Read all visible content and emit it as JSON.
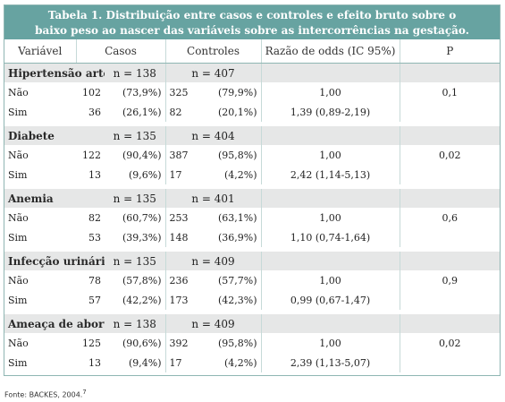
{
  "title_line1": "Tabela 1. Distribuição entre casos e controles e efeito bruto sobre o",
  "title_line2": "baixo peso ao nascer das variáveis sobre as intercorrências na gestação.",
  "headers": [
    "Variável",
    "Casos",
    "Controles",
    "Razão de odds (IC 95%)",
    "P"
  ],
  "groups": [
    {
      "name": "Hipertensão arterial",
      "n_casos": "n = 138",
      "n_controles": "n = 407",
      "rows": [
        {
          "label": "Não",
          "c": "102",
          "cp": "(73,9%)",
          "k": "325",
          "kp": "(79,9%)",
          "or": "1,00",
          "p": "0,1"
        },
        {
          "label": "Sim",
          "c": "36",
          "cp": "(26,1%)",
          "k": "82",
          "kp": "(20,1%)",
          "or": "1,39 (0,89-2,19)",
          "p": ""
        }
      ]
    },
    {
      "name": "Diabete",
      "n_casos": "n = 135",
      "n_controles": "n = 404",
      "rows": [
        {
          "label": "Não",
          "c": "122",
          "cp": "(90,4%)",
          "k": "387",
          "kp": "(95,8%)",
          "or": "1,00",
          "p": "0,02"
        },
        {
          "label": "Sim",
          "c": "13",
          "cp": "(9,6%)",
          "k": "17",
          "kp": "(4,2%)",
          "or": "2,42 (1,14-5,13)",
          "p": ""
        }
      ]
    },
    {
      "name": "Anemia",
      "n_casos": "n = 135",
      "n_controles": "n = 401",
      "rows": [
        {
          "label": "Não",
          "c": "82",
          "cp": "(60,7%)",
          "k": "253",
          "kp": "(63,1%)",
          "or": "1,00",
          "p": "0,6"
        },
        {
          "label": "Sim",
          "c": "53",
          "cp": "(39,3%)",
          "k": "148",
          "kp": "(36,9%)",
          "or": "1,10 (0,74-1,64)",
          "p": ""
        }
      ]
    },
    {
      "name": "Infecção urinária",
      "n_casos": "n = 135",
      "n_controles": "n = 409",
      "rows": [
        {
          "label": "Não",
          "c": "78",
          "cp": "(57,8%)",
          "k": "236",
          "kp": "(57,7%)",
          "or": "1,00",
          "p": "0,9"
        },
        {
          "label": "Sim",
          "c": "57",
          "cp": "(42,2%)",
          "k": "173",
          "kp": "(42,3%)",
          "or": "0,99 (0,67-1,47)",
          "p": ""
        }
      ]
    },
    {
      "name": "Ameaça de aborto",
      "n_casos": "n = 138",
      "n_controles": "n = 409",
      "rows": [
        {
          "label": "Não",
          "c": "125",
          "cp": "(90,6%)",
          "k": "392",
          "kp": "(95,8%)",
          "or": "1,00",
          "p": "0,02"
        },
        {
          "label": "Sim",
          "c": "13",
          "cp": "(9,4%)",
          "k": "17",
          "kp": "(4,2%)",
          "or": "2,39 (1,13-5,07)",
          "p": ""
        }
      ]
    }
  ],
  "source_note": "Fonte: BACKES, 2004.",
  "source_sup": "7",
  "colors": {
    "title_bg": "#67a3a1",
    "group_bg": "#e6e7e7",
    "border": "#8fb6b3"
  }
}
